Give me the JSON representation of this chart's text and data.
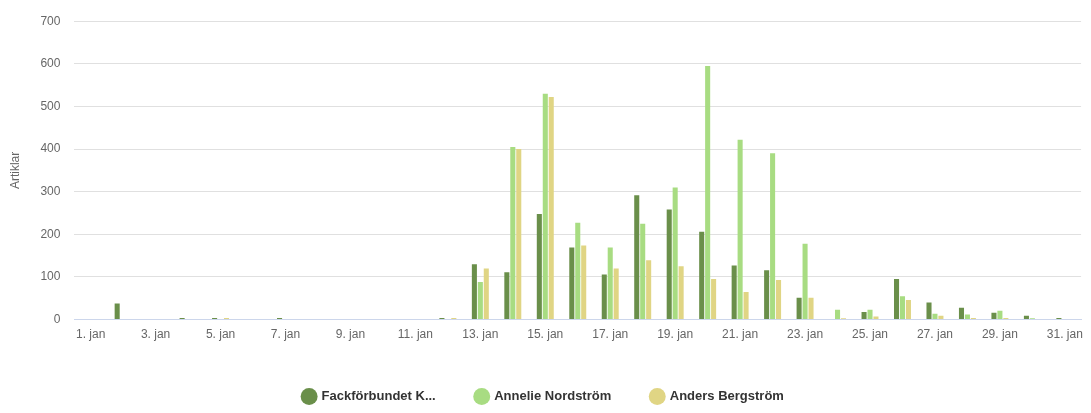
{
  "chart_data": {
    "type": "bar",
    "ylabel": "Artiklar",
    "categories": [
      "1. jan",
      null,
      "3. jan",
      null,
      "5. jan",
      null,
      "7. jan",
      null,
      "9. jan",
      null,
      "11. jan",
      null,
      "13. jan",
      null,
      "15. jan",
      null,
      "17. jan",
      null,
      "19. jan",
      null,
      "21. jan",
      null,
      "23. jan",
      null,
      "25. jan",
      null,
      "27. jan",
      null,
      "29. jan",
      null,
      "31. jan"
    ],
    "series": [
      {
        "name": "Fackförbundet K...",
        "color": "#6a8f4a",
        "values": [
          0,
          38,
          0,
          4,
          4,
          0,
          4,
          0,
          0,
          0,
          0,
          4,
          130,
          111,
          248,
          169,
          106,
          292,
          258,
          206,
          127,
          116,
          51,
          0,
          18,
          95,
          40,
          28,
          16,
          9,
          4
        ]
      },
      {
        "name": "Annelie Nordström",
        "color": "#a8dc82",
        "values": [
          0,
          0,
          0,
          0,
          0,
          0,
          0,
          0,
          0,
          0,
          0,
          0,
          88,
          405,
          530,
          227,
          169,
          225,
          310,
          595,
          422,
          390,
          178,
          23,
          23,
          55,
          14,
          12,
          21,
          3,
          0
        ]
      },
      {
        "name": "Anders Bergström",
        "color": "#e0d584",
        "values": [
          0,
          0,
          0,
          0,
          4,
          0,
          0,
          0,
          0,
          0,
          0,
          4,
          120,
          400,
          522,
          174,
          120,
          139,
          125,
          95,
          65,
          93,
          51,
          3,
          7,
          46,
          9,
          4,
          4,
          0,
          0
        ]
      }
    ],
    "ylim": [
      0,
      700
    ],
    "yticks": [
      0,
      100,
      200,
      300,
      400,
      500,
      600,
      700
    ],
    "grid": "y",
    "legend": "bottom"
  }
}
